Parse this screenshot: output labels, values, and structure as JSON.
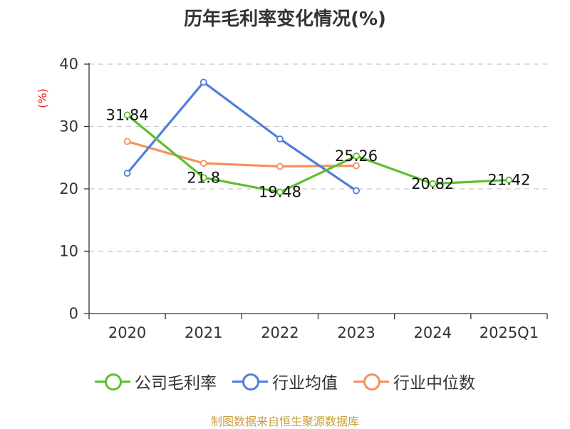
{
  "chart_data": {
    "type": "line",
    "title": "历年毛利率变化情况(%)",
    "unit": "(%)",
    "categories": [
      "2020",
      "2021",
      "2022",
      "2023",
      "2024",
      "2025Q1"
    ],
    "ylim": [
      0,
      40
    ],
    "yticks": [
      "0",
      "10",
      "20",
      "30",
      "40"
    ],
    "grid": true,
    "legend_position": "bottom",
    "series": [
      {
        "name": "公司毛利率",
        "color": "#5cc02e",
        "values": [
          31.84,
          21.8,
          19.48,
          25.26,
          20.82,
          21.42
        ],
        "labels": [
          "31.84",
          "21.8",
          "19.48",
          "25.26",
          "20.82",
          "21.42"
        ]
      },
      {
        "name": "行业均值",
        "color": "#4e7fdc",
        "values": [
          22.5,
          37.1,
          28.0,
          19.7,
          null,
          null
        ]
      },
      {
        "name": "行业中位数",
        "color": "#f5915c",
        "values": [
          27.6,
          24.1,
          23.6,
          23.7,
          null,
          null
        ]
      }
    ]
  },
  "footer": {
    "source": "制图数据来自恒生聚源数据库"
  }
}
